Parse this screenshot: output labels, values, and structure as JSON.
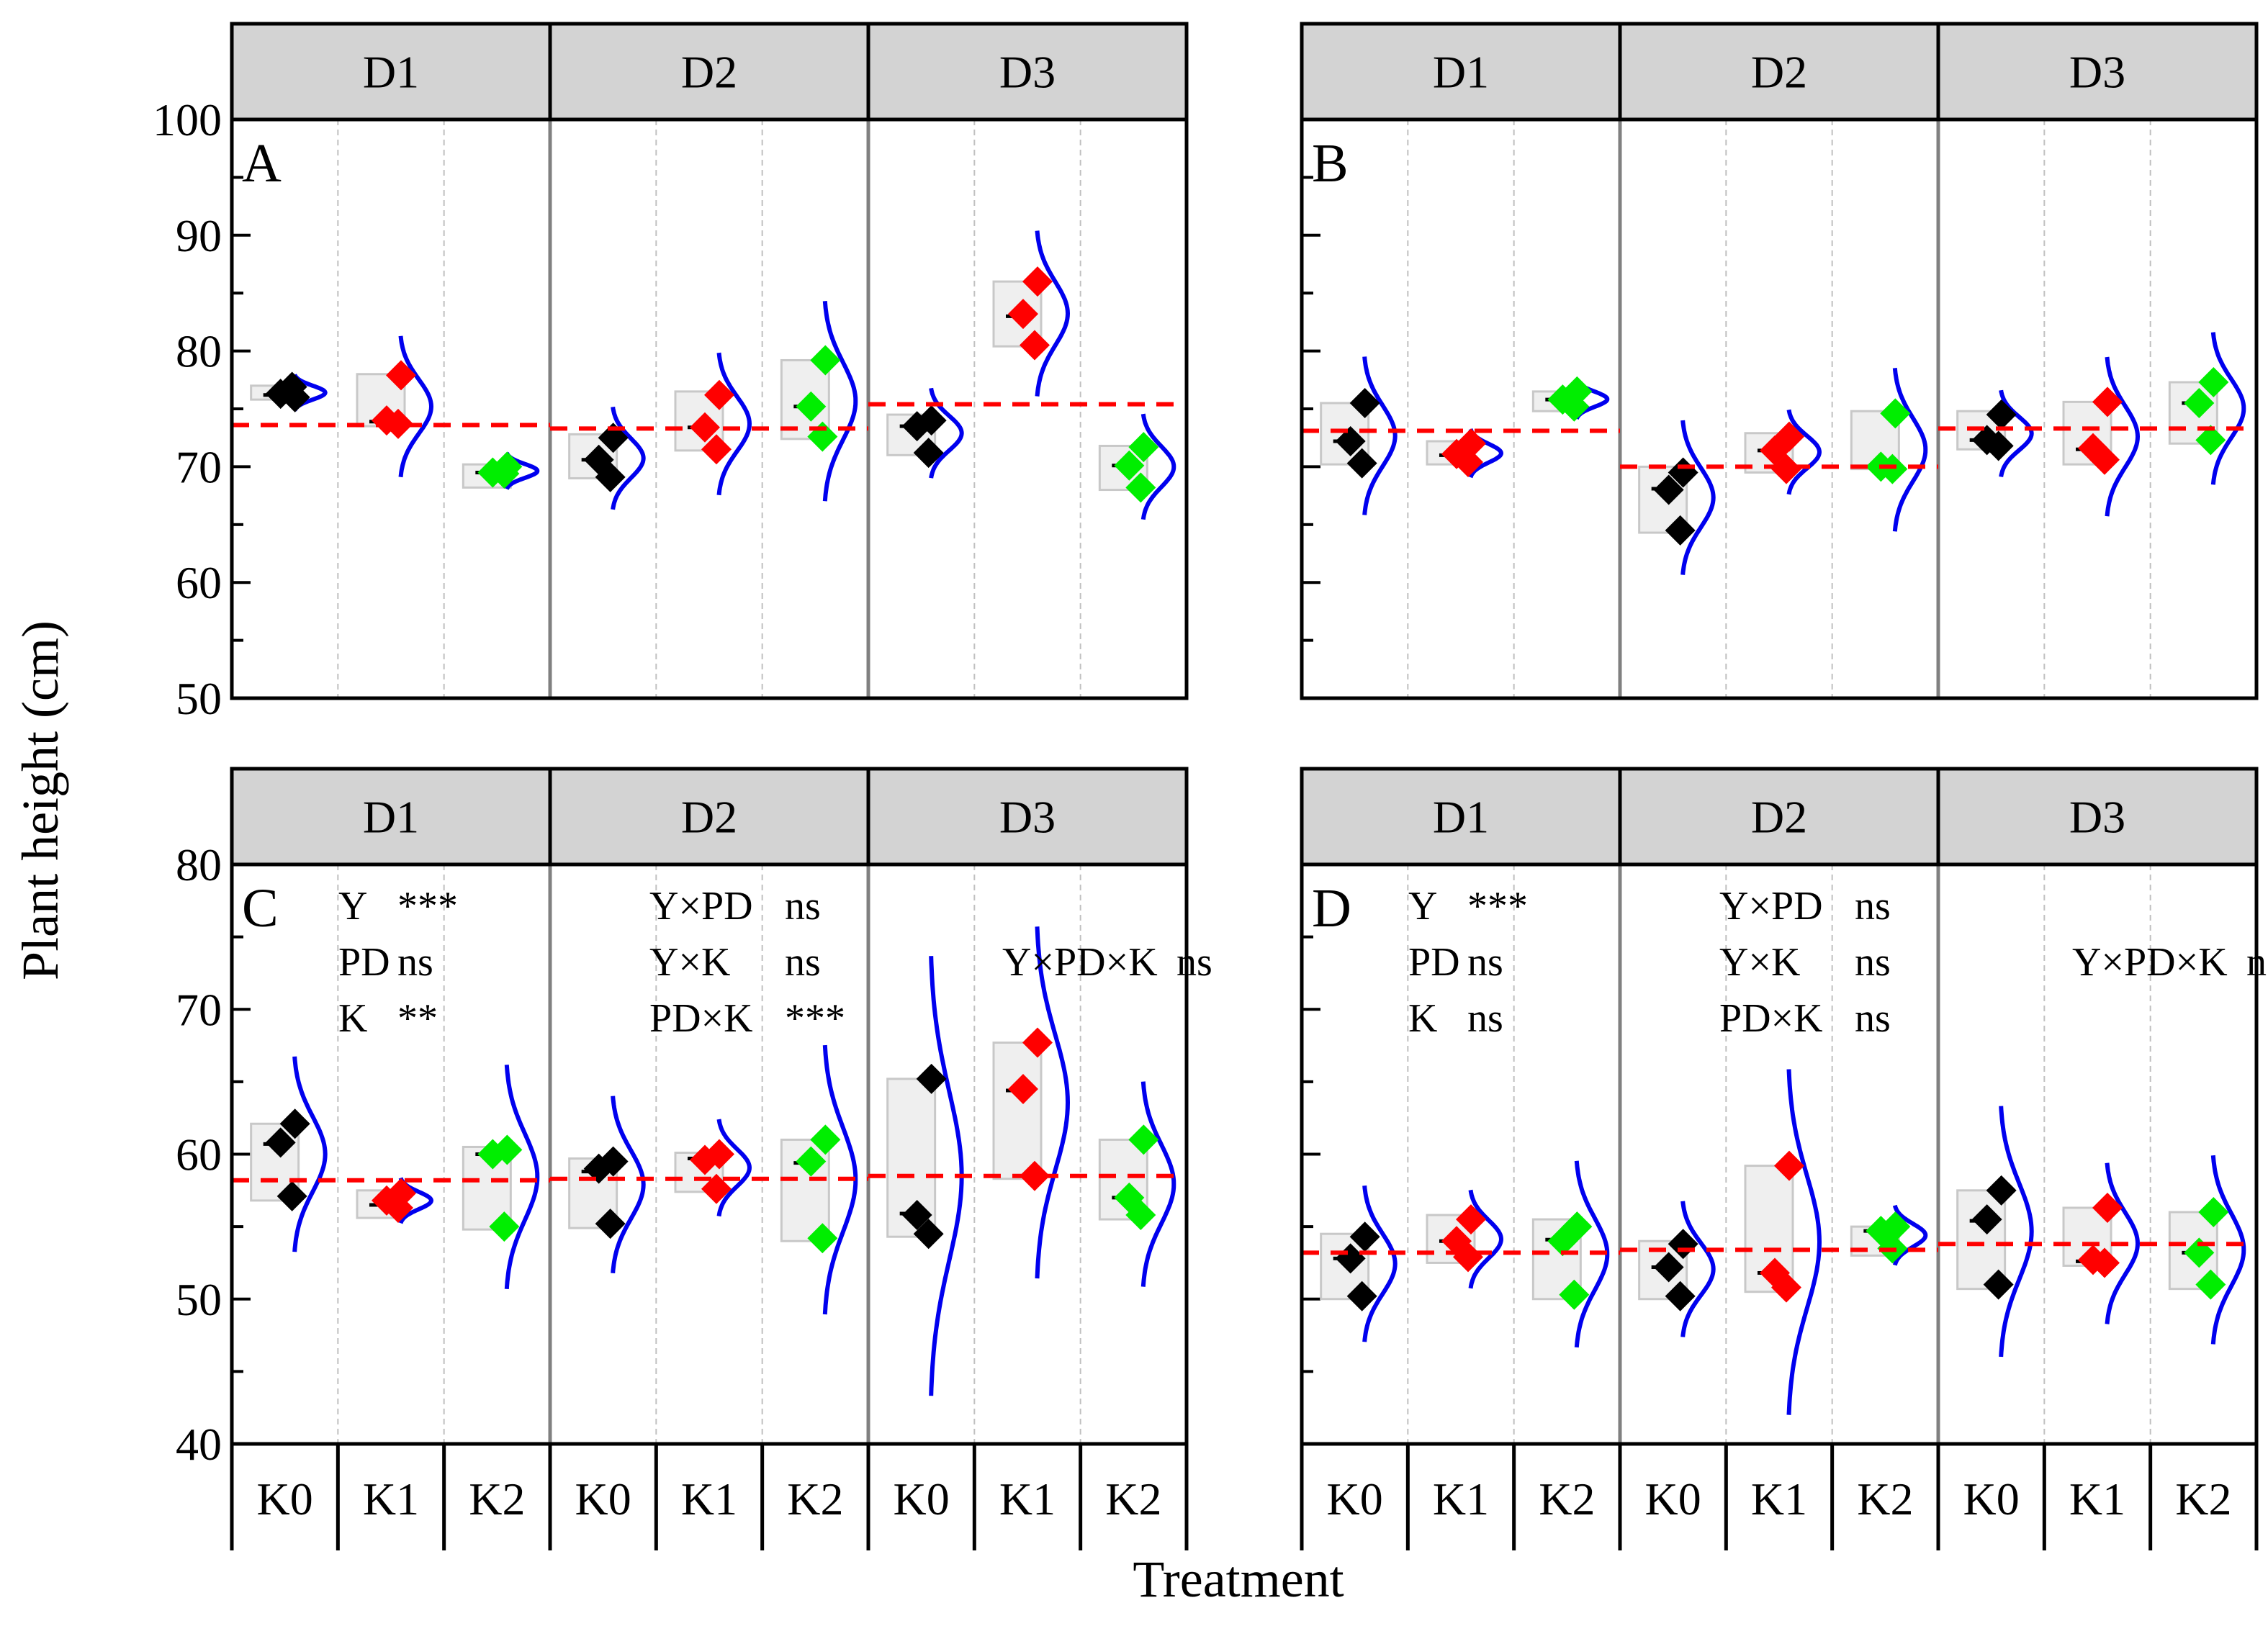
{
  "figure": {
    "ylabel": "Plant height (cm)",
    "xlabel": "Treatment",
    "categories": [
      "K0",
      "K1",
      "K2"
    ],
    "groups": [
      "D1",
      "D2",
      "D3"
    ],
    "colors": {
      "K0": "#000000",
      "K1": "#ff0000",
      "K2": "#00ee00",
      "curve": "#0000ee",
      "meanline": "#ff0000",
      "box_fill": "#efefef",
      "box_stroke": "#c8c8c8",
      "header_fill": "#d3d3d3"
    }
  },
  "chart_data": [
    {
      "type": "scatter",
      "panel": "A",
      "ylim": [
        50,
        100
      ],
      "yticks": [
        "50",
        "60",
        "70",
        "80",
        "90",
        "100"
      ],
      "groups": [
        "D1",
        "D2",
        "D3"
      ],
      "categories": [
        "K0",
        "K1",
        "K2"
      ],
      "group_means": [
        73.6,
        73.3,
        75.4
      ],
      "series": [
        {
          "group": "D1",
          "treatment": "K0",
          "points": [
            76.0,
            76.3,
            76.9
          ],
          "median": 76.2,
          "box": [
            75.8,
            77.0
          ]
        },
        {
          "group": "D1",
          "treatment": "K1",
          "points": [
            77.9,
            74.0,
            73.7
          ],
          "median": 73.9,
          "box": [
            73.5,
            78.0
          ]
        },
        {
          "group": "D1",
          "treatment": "K2",
          "points": [
            70.0,
            69.5,
            69.4
          ],
          "median": 69.5,
          "box": [
            68.2,
            70.2
          ]
        },
        {
          "group": "D2",
          "treatment": "K0",
          "points": [
            72.5,
            70.6,
            69.1
          ],
          "median": 70.6,
          "box": [
            69.0,
            72.8
          ]
        },
        {
          "group": "D2",
          "treatment": "K1",
          "points": [
            76.2,
            73.4,
            71.5
          ],
          "median": 73.4,
          "box": [
            71.4,
            76.5
          ]
        },
        {
          "group": "D2",
          "treatment": "K2",
          "points": [
            79.2,
            75.2,
            72.6
          ],
          "median": 75.2,
          "box": [
            72.4,
            79.2
          ]
        },
        {
          "group": "D3",
          "treatment": "K0",
          "points": [
            74.0,
            73.5,
            71.2
          ],
          "median": 73.5,
          "box": [
            71.0,
            74.5
          ]
        },
        {
          "group": "D3",
          "treatment": "K1",
          "points": [
            86.0,
            83.2,
            80.5
          ],
          "median": 83.0,
          "box": [
            80.4,
            86.0
          ]
        },
        {
          "group": "D3",
          "treatment": "K2",
          "points": [
            71.7,
            70.1,
            68.2
          ],
          "median": 70.1,
          "box": [
            68.0,
            71.8
          ]
        }
      ]
    },
    {
      "type": "scatter",
      "panel": "B",
      "ylim": [
        50,
        100
      ],
      "groups": [
        "D1",
        "D2",
        "D3"
      ],
      "categories": [
        "K0",
        "K1",
        "K2"
      ],
      "group_means": [
        73.1,
        70.0,
        73.3
      ],
      "series": [
        {
          "group": "D1",
          "treatment": "K0",
          "points": [
            75.5,
            72.2,
            70.3
          ],
          "median": 72.2,
          "box": [
            70.2,
            75.5
          ]
        },
        {
          "group": "D1",
          "treatment": "K1",
          "points": [
            72.0,
            71.1,
            70.4
          ],
          "median": 71.0,
          "box": [
            70.2,
            72.2
          ]
        },
        {
          "group": "D1",
          "treatment": "K2",
          "points": [
            76.5,
            75.8,
            75.2
          ],
          "median": 75.8,
          "box": [
            74.8,
            76.5
          ]
        },
        {
          "group": "D2",
          "treatment": "K0",
          "points": [
            69.5,
            68.0,
            64.5
          ],
          "median": 68.1,
          "box": [
            64.3,
            70.0
          ]
        },
        {
          "group": "D2",
          "treatment": "K1",
          "points": [
            72.6,
            71.4,
            69.8
          ],
          "median": 71.4,
          "box": [
            69.5,
            72.9
          ]
        },
        {
          "group": "D2",
          "treatment": "K2",
          "points": [
            74.6,
            70.0,
            69.8
          ],
          "median": 70.0,
          "box": [
            69.8,
            74.8
          ]
        },
        {
          "group": "D3",
          "treatment": "K0",
          "points": [
            74.5,
            72.3,
            71.8
          ],
          "median": 72.3,
          "box": [
            71.5,
            74.8
          ]
        },
        {
          "group": "D3",
          "treatment": "K1",
          "points": [
            75.6,
            71.6,
            70.6
          ],
          "median": 71.5,
          "box": [
            70.2,
            75.6
          ]
        },
        {
          "group": "D3",
          "treatment": "K2",
          "points": [
            77.3,
            75.5,
            72.3
          ],
          "median": 75.5,
          "box": [
            72.0,
            77.3
          ]
        }
      ]
    },
    {
      "type": "scatter",
      "panel": "C",
      "ylim": [
        40,
        80
      ],
      "yticks": [
        "40",
        "50",
        "60",
        "70",
        "80"
      ],
      "groups": [
        "D1",
        "D2",
        "D3"
      ],
      "categories": [
        "K0",
        "K1",
        "K2"
      ],
      "group_means": [
        58.2,
        58.3,
        58.5
      ],
      "series": [
        {
          "group": "D1",
          "treatment": "K0",
          "points": [
            62.1,
            60.8,
            57.1
          ],
          "median": 60.7,
          "box": [
            56.8,
            62.1
          ]
        },
        {
          "group": "D1",
          "treatment": "K1",
          "points": [
            57.3,
            56.8,
            56.3
          ],
          "median": 56.5,
          "box": [
            55.6,
            57.5
          ]
        },
        {
          "group": "D1",
          "treatment": "K2",
          "points": [
            60.3,
            60.0,
            55.0
          ],
          "median": 60.0,
          "box": [
            54.8,
            60.5
          ]
        },
        {
          "group": "D2",
          "treatment": "K0",
          "points": [
            59.5,
            59.0,
            55.2
          ],
          "median": 58.8,
          "box": [
            54.9,
            59.7
          ]
        },
        {
          "group": "D2",
          "treatment": "K1",
          "points": [
            60.0,
            59.6,
            57.6
          ],
          "median": 59.7,
          "box": [
            57.4,
            60.1
          ]
        },
        {
          "group": "D2",
          "treatment": "K2",
          "points": [
            61.0,
            59.5,
            54.2
          ],
          "median": 59.4,
          "box": [
            54.0,
            61.0
          ]
        },
        {
          "group": "D3",
          "treatment": "K0",
          "points": [
            65.2,
            55.8,
            54.5
          ],
          "median": 55.9,
          "box": [
            54.3,
            65.2
          ]
        },
        {
          "group": "D3",
          "treatment": "K1",
          "points": [
            67.7,
            64.5,
            58.5
          ],
          "median": 64.4,
          "box": [
            58.3,
            67.7
          ]
        },
        {
          "group": "D3",
          "treatment": "K2",
          "points": [
            61.0,
            57.0,
            55.8
          ],
          "median": 57.0,
          "box": [
            55.5,
            61.0
          ]
        }
      ],
      "annotations": [
        {
          "label": "Y",
          "value": "***"
        },
        {
          "label": "PD",
          "value": "ns"
        },
        {
          "label": "K",
          "value": "**"
        },
        {
          "label": "Y×PD",
          "value": "ns"
        },
        {
          "label": "Y×K",
          "value": "ns"
        },
        {
          "label": "PD×K",
          "value": "***"
        },
        {
          "label": "Y×PD×K",
          "value": "ns"
        }
      ]
    },
    {
      "type": "scatter",
      "panel": "D",
      "ylim": [
        40,
        80
      ],
      "groups": [
        "D1",
        "D2",
        "D3"
      ],
      "categories": [
        "K0",
        "K1",
        "K2"
      ],
      "group_means": [
        53.2,
        53.4,
        53.8
      ],
      "series": [
        {
          "group": "D1",
          "treatment": "K0",
          "points": [
            54.3,
            52.8,
            50.2
          ],
          "median": 52.8,
          "box": [
            50.0,
            54.5
          ]
        },
        {
          "group": "D1",
          "treatment": "K1",
          "points": [
            55.5,
            54.0,
            52.9
          ],
          "median": 54.0,
          "box": [
            52.5,
            55.8
          ]
        },
        {
          "group": "D1",
          "treatment": "K2",
          "points": [
            55.0,
            54.0,
            50.3
          ],
          "median": 54.1,
          "box": [
            50.0,
            55.5
          ]
        },
        {
          "group": "D2",
          "treatment": "K0",
          "points": [
            53.8,
            52.2,
            50.2
          ],
          "median": 52.2,
          "box": [
            50.0,
            54.0
          ]
        },
        {
          "group": "D2",
          "treatment": "K1",
          "points": [
            59.2,
            51.8,
            50.8
          ],
          "median": 51.8,
          "box": [
            50.5,
            59.2
          ]
        },
        {
          "group": "D2",
          "treatment": "K2",
          "points": [
            55.0,
            54.7,
            53.5
          ],
          "median": 54.7,
          "box": [
            53.0,
            55.0
          ]
        },
        {
          "group": "D3",
          "treatment": "K0",
          "points": [
            57.5,
            55.5,
            51.0
          ],
          "median": 55.4,
          "box": [
            50.7,
            57.5
          ]
        },
        {
          "group": "D3",
          "treatment": "K1",
          "points": [
            56.3,
            52.7,
            52.5
          ],
          "median": 52.6,
          "box": [
            52.3,
            56.3
          ]
        },
        {
          "group": "D3",
          "treatment": "K2",
          "points": [
            56.0,
            53.2,
            51.0
          ],
          "median": 53.2,
          "box": [
            50.7,
            56.0
          ]
        }
      ],
      "annotations": [
        {
          "label": "Y",
          "value": "***"
        },
        {
          "label": "PD",
          "value": "ns"
        },
        {
          "label": "K",
          "value": "ns"
        },
        {
          "label": "Y×PD",
          "value": "ns"
        },
        {
          "label": "Y×K",
          "value": "ns"
        },
        {
          "label": "PD×K",
          "value": "ns"
        },
        {
          "label": "Y×PD×K",
          "value": "ns"
        }
      ]
    }
  ]
}
